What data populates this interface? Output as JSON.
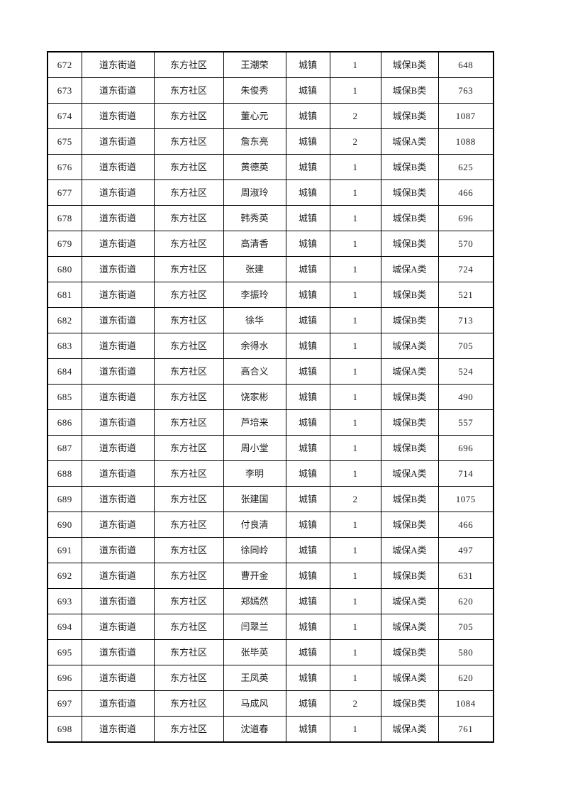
{
  "table": {
    "columns": [
      "index",
      "street",
      "community",
      "name",
      "type",
      "count",
      "category",
      "amount"
    ],
    "rows": [
      {
        "index": "672",
        "street": "道东街道",
        "community": "东方社区",
        "name": "王潮荣",
        "type": "城镇",
        "count": "1",
        "category": "城保B类",
        "amount": "648"
      },
      {
        "index": "673",
        "street": "道东街道",
        "community": "东方社区",
        "name": "朱俊秀",
        "type": "城镇",
        "count": "1",
        "category": "城保B类",
        "amount": "763"
      },
      {
        "index": "674",
        "street": "道东街道",
        "community": "东方社区",
        "name": "董心元",
        "type": "城镇",
        "count": "2",
        "category": "城保B类",
        "amount": "1087"
      },
      {
        "index": "675",
        "street": "道东街道",
        "community": "东方社区",
        "name": "詹东亮",
        "type": "城镇",
        "count": "2",
        "category": "城保A类",
        "amount": "1088"
      },
      {
        "index": "676",
        "street": "道东街道",
        "community": "东方社区",
        "name": "黄德英",
        "type": "城镇",
        "count": "1",
        "category": "城保B类",
        "amount": "625"
      },
      {
        "index": "677",
        "street": "道东街道",
        "community": "东方社区",
        "name": "周淑玲",
        "type": "城镇",
        "count": "1",
        "category": "城保B类",
        "amount": "466"
      },
      {
        "index": "678",
        "street": "道东街道",
        "community": "东方社区",
        "name": "韩秀英",
        "type": "城镇",
        "count": "1",
        "category": "城保B类",
        "amount": "696"
      },
      {
        "index": "679",
        "street": "道东街道",
        "community": "东方社区",
        "name": "高清香",
        "type": "城镇",
        "count": "1",
        "category": "城保B类",
        "amount": "570"
      },
      {
        "index": "680",
        "street": "道东街道",
        "community": "东方社区",
        "name": "张建",
        "type": "城镇",
        "count": "1",
        "category": "城保A类",
        "amount": "724"
      },
      {
        "index": "681",
        "street": "道东街道",
        "community": "东方社区",
        "name": "李振玲",
        "type": "城镇",
        "count": "1",
        "category": "城保B类",
        "amount": "521"
      },
      {
        "index": "682",
        "street": "道东街道",
        "community": "东方社区",
        "name": "徐华",
        "type": "城镇",
        "count": "1",
        "category": "城保B类",
        "amount": "713"
      },
      {
        "index": "683",
        "street": "道东街道",
        "community": "东方社区",
        "name": "余得水",
        "type": "城镇",
        "count": "1",
        "category": "城保A类",
        "amount": "705"
      },
      {
        "index": "684",
        "street": "道东街道",
        "community": "东方社区",
        "name": "高合义",
        "type": "城镇",
        "count": "1",
        "category": "城保A类",
        "amount": "524"
      },
      {
        "index": "685",
        "street": "道东街道",
        "community": "东方社区",
        "name": "饶家彬",
        "type": "城镇",
        "count": "1",
        "category": "城保B类",
        "amount": "490"
      },
      {
        "index": "686",
        "street": "道东街道",
        "community": "东方社区",
        "name": "芦培来",
        "type": "城镇",
        "count": "1",
        "category": "城保B类",
        "amount": "557"
      },
      {
        "index": "687",
        "street": "道东街道",
        "community": "东方社区",
        "name": "周小堂",
        "type": "城镇",
        "count": "1",
        "category": "城保B类",
        "amount": "696"
      },
      {
        "index": "688",
        "street": "道东街道",
        "community": "东方社区",
        "name": "李明",
        "type": "城镇",
        "count": "1",
        "category": "城保A类",
        "amount": "714"
      },
      {
        "index": "689",
        "street": "道东街道",
        "community": "东方社区",
        "name": "张建国",
        "type": "城镇",
        "count": "2",
        "category": "城保B类",
        "amount": "1075"
      },
      {
        "index": "690",
        "street": "道东街道",
        "community": "东方社区",
        "name": "付良清",
        "type": "城镇",
        "count": "1",
        "category": "城保B类",
        "amount": "466"
      },
      {
        "index": "691",
        "street": "道东街道",
        "community": "东方社区",
        "name": "徐同岭",
        "type": "城镇",
        "count": "1",
        "category": "城保A类",
        "amount": "497"
      },
      {
        "index": "692",
        "street": "道东街道",
        "community": "东方社区",
        "name": "曹开金",
        "type": "城镇",
        "count": "1",
        "category": "城保B类",
        "amount": "631"
      },
      {
        "index": "693",
        "street": "道东街道",
        "community": "东方社区",
        "name": "郑嫣然",
        "type": "城镇",
        "count": "1",
        "category": "城保A类",
        "amount": "620"
      },
      {
        "index": "694",
        "street": "道东街道",
        "community": "东方社区",
        "name": "闫翠兰",
        "type": "城镇",
        "count": "1",
        "category": "城保A类",
        "amount": "705"
      },
      {
        "index": "695",
        "street": "道东街道",
        "community": "东方社区",
        "name": "张毕英",
        "type": "城镇",
        "count": "1",
        "category": "城保B类",
        "amount": "580"
      },
      {
        "index": "696",
        "street": "道东街道",
        "community": "东方社区",
        "name": "王凤英",
        "type": "城镇",
        "count": "1",
        "category": "城保A类",
        "amount": "620"
      },
      {
        "index": "697",
        "street": "道东街道",
        "community": "东方社区",
        "name": "马成风",
        "type": "城镇",
        "count": "2",
        "category": "城保B类",
        "amount": "1084"
      },
      {
        "index": "698",
        "street": "道东街道",
        "community": "东方社区",
        "name": "沈道春",
        "type": "城镇",
        "count": "1",
        "category": "城保A类",
        "amount": "761"
      }
    ]
  }
}
